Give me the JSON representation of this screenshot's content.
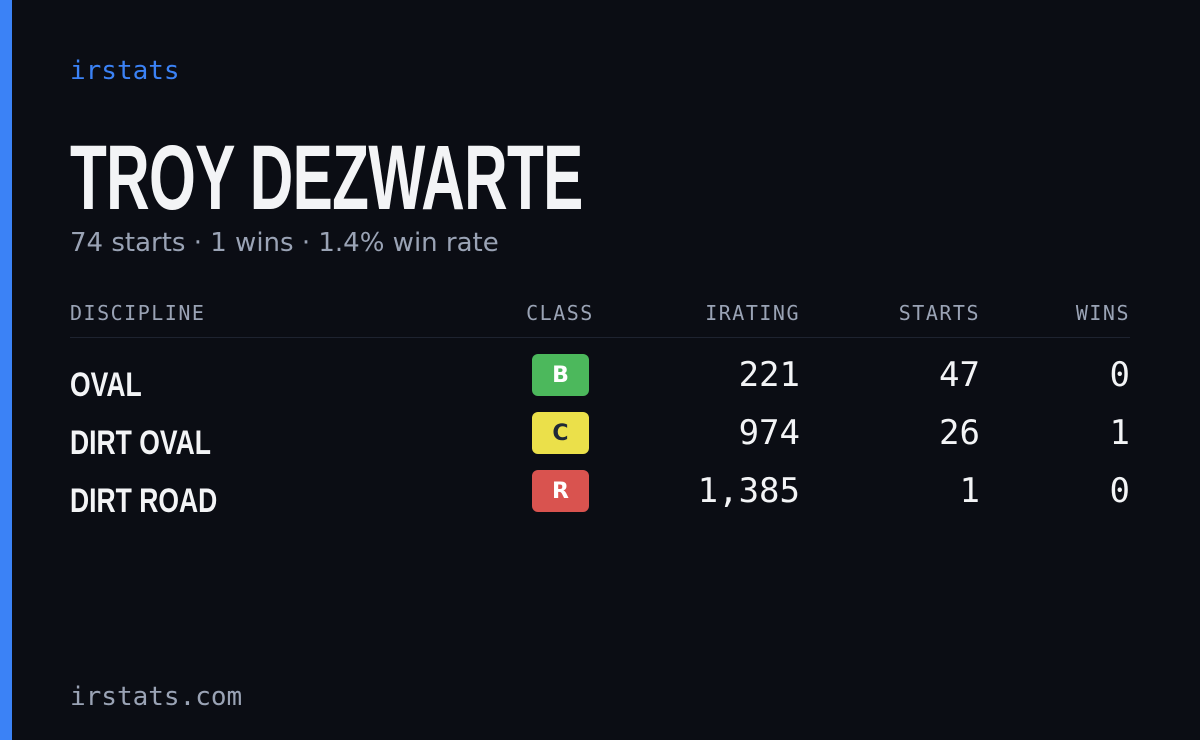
{
  "header": {
    "brand": "irstats",
    "title": "TROY DEZWARTE",
    "subtitle": "74 starts · 1 wins · 1.4% win rate"
  },
  "table": {
    "columns": [
      "DISCIPLINE",
      "CLASS",
      "IRATING",
      "STARTS",
      "WINS"
    ],
    "rows": [
      {
        "discipline": "OVAL",
        "class": "B",
        "class_color": "#4cb85c",
        "class_text_color": "#ffffff",
        "irating": "221",
        "starts": "47",
        "wins": "0"
      },
      {
        "discipline": "DIRT OVAL",
        "class": "C",
        "class_color": "#ebe04a",
        "class_text_color": "#1f2937",
        "irating": "974",
        "starts": "26",
        "wins": "1"
      },
      {
        "discipline": "DIRT ROAD",
        "class": "R",
        "class_color": "#d9534f",
        "class_text_color": "#ffffff",
        "irating": "1,385",
        "starts": "1",
        "wins": "0"
      }
    ]
  },
  "footer": {
    "site": "irstats.com"
  }
}
